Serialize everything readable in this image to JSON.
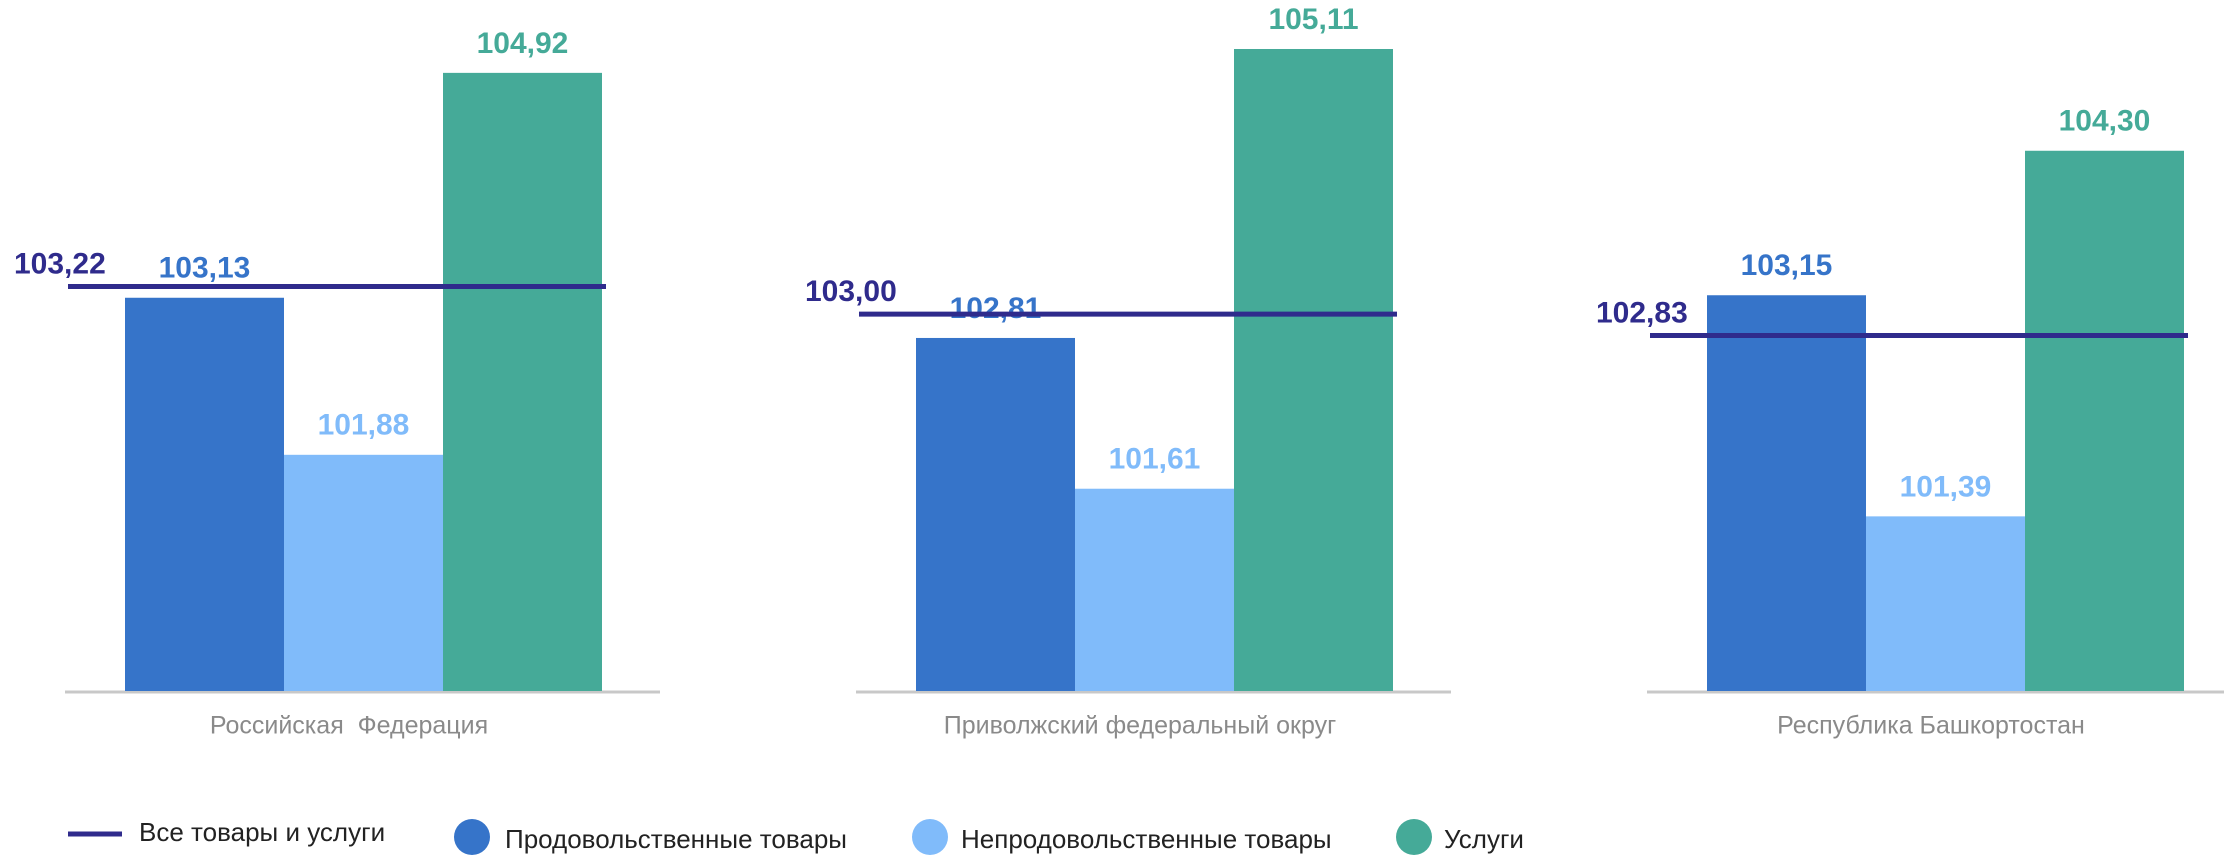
{
  "chart_data": {
    "type": "bar",
    "categories": [
      "Российская  Федерация",
      "Приволжский федеральный округ",
      "Республика Башкортостан"
    ],
    "series": [
      {
        "name": "Все товары и услуги",
        "type": "line",
        "color": "#2f2b8c",
        "values": [
          103.22,
          103.0,
          102.83
        ],
        "value_labels": [
          "103,22",
          "103,00",
          "102,83"
        ]
      },
      {
        "name": "Продовольственные товары",
        "color": "#3674c9",
        "values": [
          103.13,
          102.81,
          103.15
        ],
        "value_labels": [
          "103,13",
          "102,81",
          "103,15"
        ]
      },
      {
        "name": "Непродовольственные товары",
        "color": "#80bbfa",
        "values": [
          101.88,
          101.61,
          101.39
        ],
        "value_labels": [
          "101,88",
          "101,61",
          "101,39"
        ]
      },
      {
        "name": "Услуги",
        "color": "#45aa98",
        "values": [
          104.92,
          105.11,
          104.3
        ],
        "value_labels": [
          "104,92",
          "105,11",
          "104,30"
        ]
      }
    ],
    "ylim": [
      100,
      105.5
    ]
  }
}
